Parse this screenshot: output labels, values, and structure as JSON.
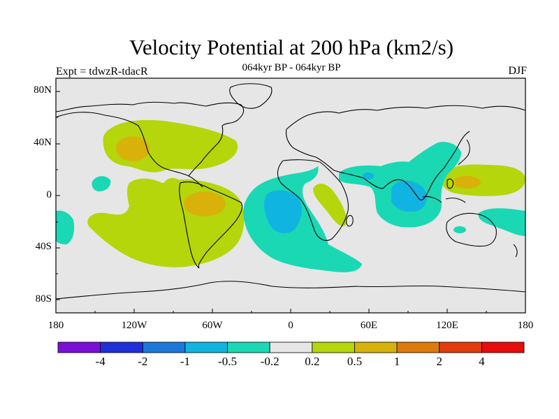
{
  "title": "Velocity Potential at 200 hPa (km2/s)",
  "subtitle_left": "Expt = tdwzR-tdacR",
  "subtitle_center": "064kyr BP - 064kyr BP",
  "subtitle_right": "DJF",
  "lat_labels": [
    "80N",
    "40N",
    "0",
    "40S",
    "80S"
  ],
  "lon_labels": [
    "180",
    "120W",
    "60W",
    "0",
    "60E",
    "120E",
    "180"
  ],
  "colorbar": {
    "labels": [
      "-4",
      "-2",
      "-1",
      "-0.5",
      "-0.2",
      "0.2",
      "0.5",
      "1",
      "2",
      "4"
    ],
    "colors": [
      "#7a10d8",
      "#2030d8",
      "#1c78d8",
      "#10b4e0",
      "#1ad8b4",
      "#e6e6e6",
      "#b4d60a",
      "#d8b20a",
      "#dc7a0c",
      "#e23c0c",
      "#e80c0c"
    ]
  },
  "map_colors": {
    "background": "#e6e6e6",
    "positive_weak": "#b4d60a",
    "positive_mid": "#d8b20a",
    "negative_weak": "#1ad8b4",
    "negative_mid": "#10b4e0"
  }
}
